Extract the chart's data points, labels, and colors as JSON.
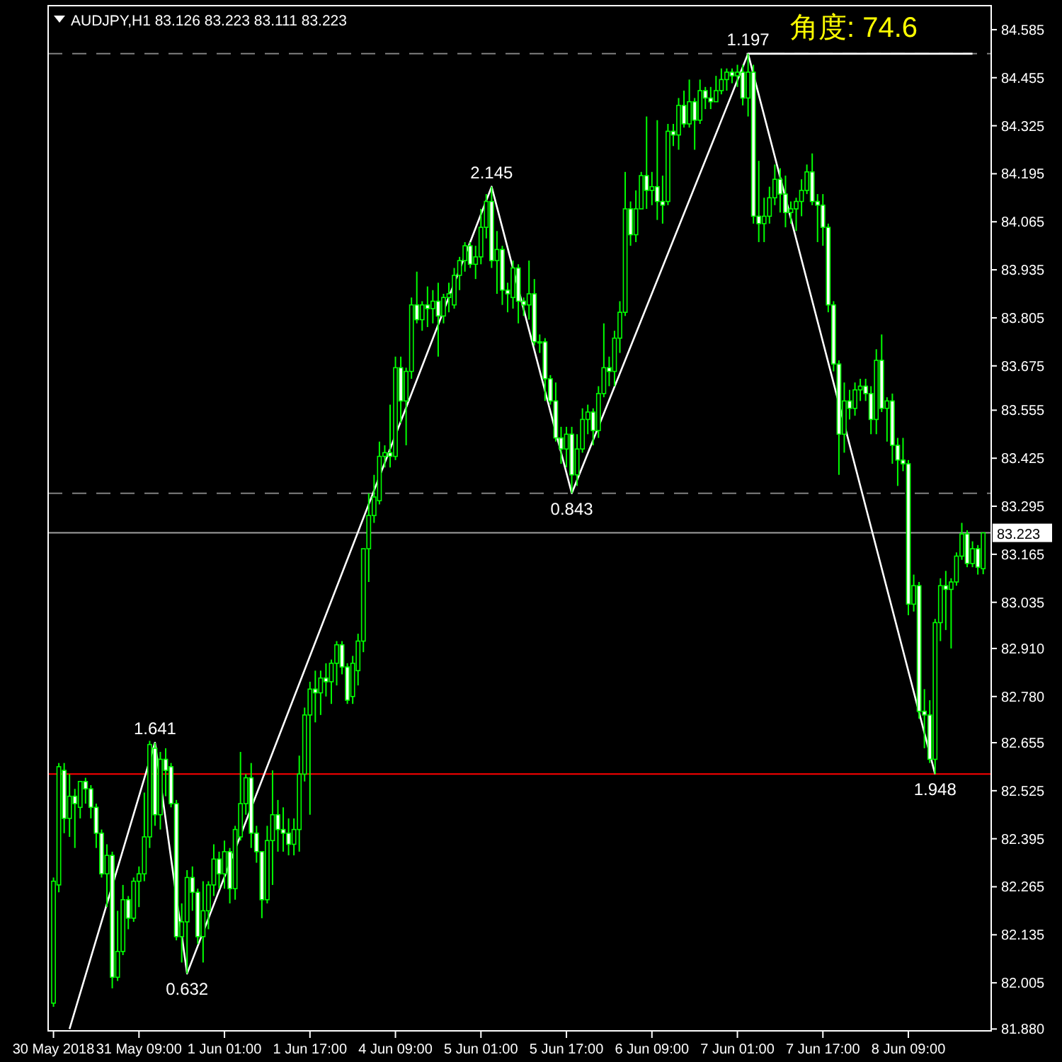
{
  "chart_data": {
    "type": "candlestick",
    "title": "AUDJPY,H1  83.126 83.223 83.111 83.223",
    "categories": [
      "30 May 2018",
      null,
      null,
      null,
      null,
      null,
      null,
      null,
      null,
      null,
      null,
      null,
      null,
      null,
      null,
      null,
      "31 May 09:00",
      null,
      null,
      null,
      null,
      null,
      null,
      null,
      null,
      null,
      null,
      null,
      null,
      null,
      null,
      null,
      "1 Jun 01:00",
      null,
      null,
      null,
      null,
      null,
      null,
      null,
      null,
      null,
      null,
      null,
      null,
      null,
      null,
      null,
      "1 Jun 17:00",
      null,
      null,
      null,
      null,
      null,
      null,
      null,
      null,
      null,
      null,
      null,
      null,
      null,
      null,
      null,
      "4 Jun 09:00",
      null,
      null,
      null,
      null,
      null,
      null,
      null,
      null,
      null,
      null,
      null,
      null,
      null,
      null,
      null,
      "5 Jun 01:00",
      null,
      null,
      null,
      null,
      null,
      null,
      null,
      null,
      null,
      null,
      null,
      null,
      null,
      null,
      null,
      "5 Jun 17:00",
      null,
      null,
      null,
      null,
      null,
      null,
      null,
      null,
      null,
      null,
      null,
      null,
      null,
      null,
      null,
      "6 Jun 09:00",
      null,
      null,
      null,
      null,
      null,
      null,
      null,
      null,
      null,
      null,
      null,
      null,
      null,
      null,
      null,
      "7 Jun 01:00",
      null,
      null,
      null,
      null,
      null,
      null,
      null,
      null,
      null,
      null,
      null,
      null,
      null,
      null,
      null,
      "7 Jun 17:00",
      null,
      null,
      null,
      null,
      null,
      null,
      null,
      null,
      null,
      null,
      null,
      null,
      null,
      null,
      null,
      "8 Jun 09:00",
      null,
      null,
      null,
      null,
      null,
      null,
      null,
      null,
      null,
      null,
      null,
      null,
      null,
      null
    ],
    "ylim": [
      81.875,
      84.65
    ],
    "yticks": [
      84.585,
      84.455,
      84.325,
      84.195,
      84.065,
      83.935,
      83.805,
      83.675,
      83.555,
      83.425,
      83.295,
      83.165,
      83.035,
      {
        "value": 82.91,
        "label": "82.910"
      },
      {
        "value": 82.78,
        "label": "82.780"
      },
      82.655,
      82.525,
      82.395,
      82.265,
      82.135,
      82.005,
      {
        "value": 81.88,
        "label": "81.880"
      }
    ],
    "series": [
      {
        "color": "#00ff00",
        "ohlc": [
          [
            81.95,
            82.29,
            81.94,
            82.28
          ],
          [
            82.27,
            82.6,
            82.25,
            82.59
          ],
          [
            82.58,
            82.6,
            82.41,
            82.45
          ],
          [
            82.45,
            82.57,
            82.4,
            82.51
          ],
          [
            82.51,
            82.53,
            82.37,
            82.49
          ],
          [
            82.48,
            82.55,
            82.45,
            82.55
          ],
          [
            82.55,
            82.56,
            82.49,
            82.53
          ],
          [
            82.53,
            82.54,
            82.45,
            82.48
          ],
          [
            82.48,
            82.49,
            82.37,
            82.41
          ],
          [
            82.41,
            82.42,
            82.29,
            82.3
          ],
          [
            82.3,
            82.38,
            82.21,
            82.35
          ],
          [
            82.35,
            82.36,
            81.99,
            82.02
          ],
          [
            82.02,
            82.2,
            82.01,
            82.09
          ],
          [
            82.09,
            82.27,
            82.08,
            82.23
          ],
          [
            82.23,
            82.24,
            82.15,
            82.18
          ],
          [
            82.18,
            82.29,
            82.17,
            82.28
          ],
          [
            82.28,
            82.32,
            82.21,
            82.3
          ],
          [
            82.3,
            82.52,
            82.28,
            82.4
          ],
          [
            82.4,
            82.66,
            82.37,
            82.65
          ],
          [
            82.64,
            82.655,
            82.43,
            82.46
          ],
          [
            82.46,
            82.63,
            82.42,
            82.61
          ],
          [
            82.61,
            82.64,
            82.51,
            82.58
          ],
          [
            82.59,
            82.6,
            82.48,
            82.49
          ],
          [
            82.49,
            82.5,
            82.12,
            82.13
          ],
          [
            82.13,
            82.22,
            82.06,
            82.17
          ],
          [
            82.17,
            82.31,
            82.03,
            82.29
          ],
          [
            82.29,
            82.32,
            82.2,
            82.25
          ],
          [
            82.25,
            82.26,
            82.11,
            82.13
          ],
          [
            82.13,
            82.28,
            82.06,
            82.2
          ],
          [
            82.2,
            82.28,
            82.15,
            82.27
          ],
          [
            82.27,
            82.38,
            82.24,
            82.34
          ],
          [
            82.34,
            82.36,
            82.26,
            82.3
          ],
          [
            82.3,
            82.39,
            82.26,
            82.36
          ],
          [
            82.36,
            82.37,
            82.22,
            82.26
          ],
          [
            82.26,
            82.43,
            82.23,
            82.42
          ],
          [
            82.4,
            82.63,
            82.39,
            82.49
          ],
          [
            82.49,
            82.57,
            82.46,
            82.56
          ],
          [
            82.56,
            82.6,
            82.37,
            82.41
          ],
          [
            82.41,
            82.43,
            82.33,
            82.36
          ],
          [
            82.36,
            82.36,
            82.18,
            82.23
          ],
          [
            82.23,
            82.43,
            82.22,
            82.39
          ],
          [
            82.39,
            82.58,
            82.27,
            82.46
          ],
          [
            82.46,
            82.5,
            82.36,
            82.42
          ],
          [
            82.42,
            82.48,
            82.36,
            82.41
          ],
          [
            82.41,
            82.45,
            82.35,
            82.38
          ],
          [
            82.38,
            82.45,
            82.35,
            82.42
          ],
          [
            82.42,
            82.62,
            82.36,
            82.57
          ],
          [
            82.57,
            82.75,
            82.55,
            82.73
          ],
          [
            82.73,
            82.82,
            82.46,
            82.8
          ],
          [
            82.8,
            82.85,
            82.71,
            82.79
          ],
          [
            82.79,
            82.85,
            82.73,
            82.83
          ],
          [
            82.83,
            82.87,
            82.78,
            82.82
          ],
          [
            82.82,
            82.88,
            82.76,
            82.87
          ],
          [
            82.87,
            82.93,
            82.81,
            82.92
          ],
          [
            82.92,
            82.93,
            82.84,
            82.86
          ],
          [
            82.86,
            82.87,
            82.76,
            82.77
          ],
          [
            82.78,
            82.89,
            82.76,
            82.87
          ],
          [
            82.85,
            82.95,
            82.81,
            82.93
          ],
          [
            82.93,
            83.18,
            82.9,
            83.18
          ],
          [
            83.18,
            83.33,
            83.09,
            83.27
          ],
          [
            83.27,
            83.38,
            83.25,
            83.32
          ],
          [
            83.31,
            83.47,
            83.3,
            83.43
          ],
          [
            83.43,
            83.46,
            83.4,
            83.44
          ],
          [
            83.44,
            83.57,
            83.4,
            83.43
          ],
          [
            83.43,
            83.7,
            83.42,
            83.67
          ],
          [
            83.67,
            83.7,
            83.52,
            83.58
          ],
          [
            83.58,
            83.67,
            83.46,
            83.66
          ],
          [
            83.66,
            83.86,
            83.64,
            83.84
          ],
          [
            83.84,
            83.93,
            83.79,
            83.8
          ],
          [
            83.8,
            83.85,
            83.77,
            83.84
          ],
          [
            83.84,
            83.89,
            83.78,
            83.83
          ],
          [
            83.83,
            83.88,
            83.79,
            83.85
          ],
          [
            83.85,
            83.9,
            83.7,
            83.81
          ],
          [
            83.81,
            83.87,
            83.79,
            83.86
          ],
          [
            83.86,
            83.9,
            83.82,
            83.87
          ],
          [
            83.84,
            83.94,
            83.83,
            83.92
          ],
          [
            83.92,
            83.97,
            83.88,
            83.96
          ],
          [
            83.96,
            84.01,
            83.93,
            84.0
          ],
          [
            84.0,
            84.01,
            83.94,
            83.95
          ],
          [
            83.95,
            84.0,
            83.91,
            83.97
          ],
          [
            83.97,
            84.1,
            83.95,
            84.05
          ],
          [
            84.05,
            84.14,
            84.02,
            84.12
          ],
          [
            84.12,
            84.16,
            83.94,
            83.96
          ],
          [
            83.96,
            84.04,
            83.87,
            83.99
          ],
          [
            83.99,
            84.0,
            83.84,
            83.88
          ],
          [
            83.88,
            83.9,
            83.82,
            83.87
          ],
          [
            83.86,
            83.96,
            83.83,
            83.94
          ],
          [
            83.94,
            83.95,
            83.79,
            83.85
          ],
          [
            83.85,
            83.86,
            83.81,
            83.84
          ],
          [
            83.84,
            83.96,
            83.8,
            83.87
          ],
          [
            83.87,
            83.91,
            83.73,
            83.74
          ],
          [
            83.74,
            83.76,
            83.71,
            83.74
          ],
          [
            83.74,
            83.75,
            83.58,
            83.64
          ],
          [
            83.64,
            83.65,
            83.57,
            83.58
          ],
          [
            83.58,
            83.63,
            83.47,
            83.48
          ],
          [
            83.48,
            83.51,
            83.41,
            83.45
          ],
          [
            83.45,
            83.51,
            83.4,
            83.49
          ],
          [
            83.49,
            83.51,
            83.33,
            83.38
          ],
          [
            83.38,
            83.49,
            83.35,
            83.45
          ],
          [
            83.45,
            83.56,
            83.44,
            83.53
          ],
          [
            83.53,
            83.57,
            83.49,
            83.55
          ],
          [
            83.55,
            83.56,
            83.46,
            83.5
          ],
          [
            83.5,
            83.62,
            83.48,
            83.6
          ],
          [
            83.6,
            83.79,
            83.59,
            83.67
          ],
          [
            83.67,
            83.7,
            83.62,
            83.66
          ],
          [
            83.66,
            83.77,
            83.62,
            83.75
          ],
          [
            83.75,
            83.85,
            83.71,
            83.82
          ],
          [
            83.82,
            84.2,
            83.81,
            84.1
          ],
          [
            84.1,
            84.12,
            84.0,
            84.03
          ],
          [
            84.03,
            84.15,
            84.01,
            84.1
          ],
          [
            84.1,
            84.2,
            84.1,
            84.19
          ],
          [
            84.19,
            84.35,
            84.1,
            84.15
          ],
          [
            84.15,
            84.2,
            84.11,
            84.16
          ],
          [
            84.16,
            84.34,
            84.07,
            84.12
          ],
          [
            84.12,
            84.19,
            84.06,
            84.11
          ],
          [
            84.12,
            84.33,
            84.11,
            84.31
          ],
          [
            84.31,
            84.33,
            84.27,
            84.3
          ],
          [
            84.3,
            84.4,
            84.26,
            84.38
          ],
          [
            84.38,
            84.42,
            84.32,
            84.33
          ],
          [
            84.33,
            84.45,
            84.32,
            84.39
          ],
          [
            84.39,
            84.4,
            84.26,
            84.34
          ],
          [
            84.34,
            84.45,
            84.33,
            84.42
          ],
          [
            84.42,
            84.43,
            84.37,
            84.4
          ],
          [
            84.4,
            84.43,
            84.37,
            84.39
          ],
          [
            84.39,
            84.46,
            84.39,
            84.42
          ],
          [
            84.42,
            84.48,
            84.41,
            84.45
          ],
          [
            84.45,
            84.48,
            84.42,
            84.47
          ],
          [
            84.47,
            84.48,
            84.44,
            84.46
          ],
          [
            84.46,
            84.49,
            84.43,
            84.47
          ],
          [
            84.47,
            84.49,
            84.38,
            84.4
          ],
          [
            84.4,
            84.52,
            84.35,
            84.47
          ],
          [
            84.47,
            84.49,
            84.06,
            84.08
          ],
          [
            84.08,
            84.23,
            84.01,
            84.06
          ],
          [
            84.06,
            84.13,
            84.01,
            84.08
          ],
          [
            84.08,
            84.16,
            84.06,
            84.13
          ],
          [
            84.13,
            84.22,
            84.11,
            84.18
          ],
          [
            84.18,
            84.21,
            84.09,
            84.14
          ],
          [
            84.14,
            84.19,
            84.05,
            84.09
          ],
          [
            84.09,
            84.12,
            84.06,
            84.1
          ],
          [
            84.1,
            84.13,
            84.04,
            84.12
          ],
          [
            84.12,
            84.18,
            84.08,
            84.15
          ],
          [
            84.15,
            84.22,
            84.14,
            84.2
          ],
          [
            84.2,
            84.25,
            84.11,
            84.12
          ],
          [
            84.12,
            84.14,
            84.01,
            84.11
          ],
          [
            84.11,
            84.14,
            84.0,
            84.05
          ],
          [
            84.05,
            84.06,
            83.82,
            83.84
          ],
          [
            83.84,
            83.85,
            83.66,
            83.68
          ],
          [
            83.68,
            83.69,
            83.38,
            83.49
          ],
          [
            83.49,
            83.63,
            83.44,
            83.58
          ],
          [
            83.58,
            83.61,
            83.53,
            83.56
          ],
          [
            83.56,
            83.63,
            83.54,
            83.61
          ],
          [
            83.61,
            83.64,
            83.58,
            83.62
          ],
          [
            83.62,
            83.64,
            83.58,
            83.6
          ],
          [
            83.6,
            83.62,
            83.49,
            83.53
          ],
          [
            83.53,
            83.72,
            83.49,
            83.69
          ],
          [
            83.69,
            83.76,
            83.55,
            83.56
          ],
          [
            83.56,
            83.59,
            83.47,
            83.58
          ],
          [
            83.58,
            83.6,
            83.41,
            83.46
          ],
          [
            83.46,
            83.48,
            83.35,
            83.42
          ],
          [
            83.42,
            83.48,
            83.39,
            83.41
          ],
          [
            83.41,
            83.42,
            83.0,
            83.03
          ],
          [
            83.03,
            83.11,
            83.01,
            83.08
          ],
          [
            83.08,
            83.09,
            82.72,
            82.74
          ],
          [
            82.74,
            82.8,
            82.64,
            82.73
          ],
          [
            82.73,
            82.77,
            82.6,
            82.61
          ],
          [
            82.61,
            82.99,
            82.57,
            82.98
          ],
          [
            82.98,
            83.1,
            82.93,
            83.08
          ],
          [
            83.08,
            83.12,
            82.96,
            83.07
          ],
          [
            83.07,
            83.1,
            82.91,
            83.09
          ],
          [
            83.09,
            83.17,
            83.08,
            83.16
          ],
          [
            83.16,
            83.25,
            83.15,
            83.22
          ],
          [
            83.22,
            83.23,
            83.13,
            83.14
          ],
          [
            83.14,
            83.2,
            83.13,
            83.18
          ],
          [
            83.18,
            83.19,
            83.11,
            83.13
          ],
          [
            83.126,
            83.223,
            83.111,
            83.223
          ]
        ]
      },
      {
        "type": "line",
        "color": "#ffffff",
        "values": [
          null,
          null,
          null,
          81.88,
          null,
          null,
          null,
          null,
          null,
          null,
          null,
          null,
          null,
          null,
          null,
          null,
          null,
          null,
          null,
          82.655,
          null,
          null,
          null,
          null,
          null,
          82.03,
          null,
          null,
          null,
          null,
          null,
          null,
          null,
          null,
          null,
          null,
          null,
          null,
          null,
          null,
          null,
          null,
          null,
          null,
          null,
          null,
          null,
          null,
          null,
          null,
          null,
          null,
          null,
          null,
          null,
          null,
          null,
          null,
          null,
          null,
          null,
          null,
          null,
          null,
          null,
          null,
          null,
          null,
          null,
          null,
          null,
          null,
          null,
          null,
          null,
          null,
          null,
          null,
          null,
          null,
          null,
          null,
          84.16,
          null,
          null,
          null,
          null,
          null,
          null,
          null,
          null,
          null,
          null,
          null,
          null,
          null,
          null,
          83.33,
          null,
          null,
          null,
          null,
          null,
          null,
          null,
          null,
          null,
          null,
          null,
          null,
          null,
          null,
          null,
          null,
          null,
          null,
          null,
          null,
          null,
          null,
          null,
          null,
          null,
          null,
          null,
          null,
          null,
          null,
          null,
          null,
          84.52,
          null,
          null,
          null,
          null,
          null,
          null,
          null,
          null,
          null,
          null,
          null,
          null,
          null,
          null,
          null,
          null,
          null,
          null,
          null,
          null,
          null,
          null,
          null,
          null,
          null,
          null,
          null,
          null,
          null,
          null,
          null,
          null,
          null,
          null,
          82.57,
          null,
          null,
          null,
          null,
          null,
          null,
          null,
          null,
          null
        ]
      },
      {
        "type": "line",
        "color": "#ffffff",
        "values": [
          null,
          null,
          null,
          null,
          null,
          null,
          null,
          null,
          null,
          null,
          null,
          null,
          null,
          null,
          null,
          null,
          null,
          null,
          null,
          null,
          null,
          null,
          null,
          null,
          null,
          null,
          null,
          null,
          null,
          null,
          null,
          null,
          null,
          null,
          null,
          null,
          null,
          null,
          null,
          null,
          null,
          null,
          null,
          null,
          null,
          null,
          null,
          null,
          null,
          null,
          null,
          null,
          null,
          null,
          null,
          null,
          null,
          null,
          null,
          null,
          null,
          null,
          null,
          null,
          null,
          null,
          null,
          null,
          null,
          null,
          null,
          null,
          null,
          null,
          null,
          null,
          null,
          null,
          null,
          null,
          null,
          null,
          null,
          null,
          null,
          null,
          null,
          null,
          null,
          null,
          null,
          null,
          null,
          null,
          null,
          null,
          null,
          null,
          null,
          null,
          null,
          null,
          null,
          null,
          null,
          null,
          null,
          null,
          null,
          null,
          null,
          null,
          null,
          null,
          null,
          null,
          null,
          null,
          null,
          null,
          null,
          null,
          null,
          null,
          null,
          null,
          null,
          null,
          null,
          null,
          84.52,
          null,
          null,
          null,
          null,
          null,
          null,
          null,
          null,
          null,
          null,
          null,
          null,
          null,
          null,
          null,
          null,
          null,
          null,
          null,
          null,
          null,
          null,
          null,
          null,
          null,
          null,
          null,
          null,
          null,
          null,
          null,
          null,
          null,
          null,
          null,
          null,
          null,
          null,
          null,
          null,
          null,
          84.52,
          null,
          null
        ]
      }
    ],
    "ref_lines": [
      {
        "axis": "y",
        "value": 82.57,
        "color": "#ff0000"
      },
      {
        "axis": "y",
        "value": 83.223,
        "label": "83.223",
        "color": "#a0a0a0"
      },
      {
        "axis": "y",
        "value": 84.52,
        "color": "#808080",
        "line_style": "dashed"
      },
      {
        "axis": "y",
        "value": 83.33,
        "color": "#808080",
        "line_style": "dashed"
      }
    ],
    "annotations": [
      {
        "text": "1.641",
        "y": 82.655
      },
      {
        "text": "0.632",
        "y": 82.03
      },
      {
        "text": "2.145",
        "y": 84.16
      },
      {
        "text": "0.843",
        "y": 83.33
      },
      {
        "text": "1.197",
        "y": 84.52
      },
      {
        "text": "1.948",
        "y": 82.57
      },
      "角度: 74.6"
    ]
  }
}
